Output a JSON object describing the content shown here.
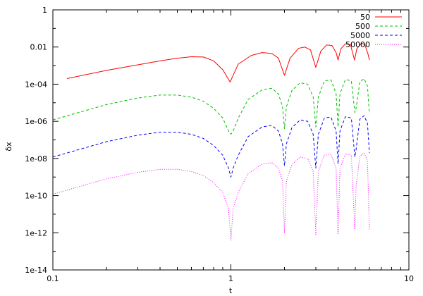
{
  "chart_data": {
    "type": "line",
    "title": "",
    "xlabel": "t",
    "ylabel": "δx",
    "xscale": "log",
    "yscale": "log",
    "xlim": [
      0.1,
      10
    ],
    "ylim": [
      1e-14,
      1
    ],
    "grid": false,
    "legend_position": "top-right",
    "x_ticks": [
      {
        "value": 0.1,
        "label": "0.1"
      },
      {
        "value": 1,
        "label": "1"
      },
      {
        "value": 10,
        "label": "10"
      }
    ],
    "y_ticks": [
      {
        "value": 1e-14,
        "label": "1e-14"
      },
      {
        "value": 1e-12,
        "label": "1e-12"
      },
      {
        "value": 1e-10,
        "label": "1e-10"
      },
      {
        "value": 1e-08,
        "label": "1e-08"
      },
      {
        "value": 1e-06,
        "label": "1e-06"
      },
      {
        "value": 0.0001,
        "label": "1e-04"
      },
      {
        "value": 0.01,
        "label": "0.01"
      },
      {
        "value": 1,
        "label": "1"
      }
    ],
    "series": [
      {
        "name": "50",
        "color": "#ff0000",
        "dash": "solid",
        "points": [
          [
            0.12,
            0.0002
          ],
          [
            0.2,
            0.00055
          ],
          [
            0.3,
            0.0011
          ],
          [
            0.4,
            0.0018
          ],
          [
            0.5,
            0.0025
          ],
          [
            0.6,
            0.003
          ],
          [
            0.7,
            0.0029
          ],
          [
            0.8,
            0.0018
          ],
          [
            0.9,
            0.0006
          ],
          [
            0.99,
            0.00013
          ],
          [
            1.1,
            0.0012
          ],
          [
            1.3,
            0.0035
          ],
          [
            1.5,
            0.005
          ],
          [
            1.7,
            0.0045
          ],
          [
            1.85,
            0.0025
          ],
          [
            2.0,
            0.0003
          ],
          [
            2.15,
            0.0025
          ],
          [
            2.4,
            0.0085
          ],
          [
            2.6,
            0.01
          ],
          [
            2.8,
            0.007
          ],
          [
            3.0,
            0.0008
          ],
          [
            3.2,
            0.006
          ],
          [
            3.45,
            0.013
          ],
          [
            3.7,
            0.012
          ],
          [
            3.9,
            0.005
          ],
          [
            4.0,
            0.002
          ],
          [
            4.15,
            0.008
          ],
          [
            4.4,
            0.015
          ],
          [
            4.7,
            0.013
          ],
          [
            4.95,
            0.002
          ],
          [
            5.1,
            0.008
          ],
          [
            5.4,
            0.016
          ],
          [
            5.65,
            0.014
          ],
          [
            5.9,
            0.004
          ],
          [
            6.0,
            0.002
          ]
        ]
      },
      {
        "name": "500",
        "color": "#00c000",
        "dash": "dashed",
        "points": [
          [
            0.1,
            1.2e-06
          ],
          [
            0.2,
            8e-06
          ],
          [
            0.3,
            1.8e-05
          ],
          [
            0.4,
            2.6e-05
          ],
          [
            0.5,
            2.6e-05
          ],
          [
            0.6,
            2e-05
          ],
          [
            0.7,
            1.2e-05
          ],
          [
            0.8,
            5e-06
          ],
          [
            0.9,
            1.5e-06
          ],
          [
            0.97,
            3e-07
          ],
          [
            1.0,
            2e-07
          ],
          [
            1.03,
            3e-07
          ],
          [
            1.1,
            1.5e-06
          ],
          [
            1.25,
            1.5e-05
          ],
          [
            1.5,
            5e-05
          ],
          [
            1.7,
            6e-05
          ],
          [
            1.85,
            3e-05
          ],
          [
            1.95,
            6e-06
          ],
          [
            2.0,
            4e-07
          ],
          [
            2.05,
            6e-06
          ],
          [
            2.2,
            4.5e-05
          ],
          [
            2.45,
            0.00012
          ],
          [
            2.7,
            0.0001
          ],
          [
            2.9,
            2e-05
          ],
          [
            3.0,
            5e-07
          ],
          [
            3.1,
            2e-05
          ],
          [
            3.35,
            0.00015
          ],
          [
            3.65,
            0.00017
          ],
          [
            3.9,
            3e-05
          ],
          [
            4.0,
            5e-07
          ],
          [
            4.1,
            3e-05
          ],
          [
            4.4,
            0.00018
          ],
          [
            4.75,
            0.00015
          ],
          [
            4.97,
            3e-06
          ],
          [
            5.05,
            5e-06
          ],
          [
            5.3,
            0.00013
          ],
          [
            5.6,
            0.0002
          ],
          [
            5.85,
            8e-05
          ],
          [
            6.0,
            2.5e-06
          ]
        ]
      },
      {
        "name": "5000",
        "color": "#0000ff",
        "dash": "dashed",
        "points": [
          [
            0.1,
            1.2e-08
          ],
          [
            0.2,
            8e-08
          ],
          [
            0.3,
            1.8e-07
          ],
          [
            0.4,
            2.6e-07
          ],
          [
            0.5,
            2.6e-07
          ],
          [
            0.6,
            2e-07
          ],
          [
            0.7,
            1.2e-07
          ],
          [
            0.8,
            5e-08
          ],
          [
            0.9,
            1.5e-08
          ],
          [
            0.97,
            3e-09
          ],
          [
            1.0,
            1e-09
          ],
          [
            1.03,
            3e-09
          ],
          [
            1.1,
            1.5e-08
          ],
          [
            1.25,
            1.5e-07
          ],
          [
            1.5,
            5e-07
          ],
          [
            1.7,
            6e-07
          ],
          [
            1.85,
            3e-07
          ],
          [
            1.95,
            6e-08
          ],
          [
            2.0,
            4e-09
          ],
          [
            2.05,
            6e-08
          ],
          [
            2.2,
            4.5e-07
          ],
          [
            2.45,
            1.2e-06
          ],
          [
            2.7,
            1e-06
          ],
          [
            2.9,
            2e-07
          ],
          [
            3.0,
            3e-09
          ],
          [
            3.1,
            2e-07
          ],
          [
            3.35,
            1.5e-06
          ],
          [
            3.65,
            1.7e-06
          ],
          [
            3.9,
            3e-07
          ],
          [
            4.0,
            5e-09
          ],
          [
            4.1,
            3e-07
          ],
          [
            4.4,
            1.8e-06
          ],
          [
            4.75,
            1.5e-06
          ],
          [
            4.97,
            1.2e-08
          ],
          [
            5.05,
            3e-08
          ],
          [
            5.3,
            1.3e-06
          ],
          [
            5.6,
            2e-06
          ],
          [
            5.85,
            8e-07
          ],
          [
            6.0,
            2e-08
          ]
        ]
      },
      {
        "name": "50000",
        "color": "#ff00ff",
        "dash": "dotted",
        "points": [
          [
            0.1,
            1.2e-10
          ],
          [
            0.2,
            8e-10
          ],
          [
            0.3,
            1.8e-09
          ],
          [
            0.4,
            2.6e-09
          ],
          [
            0.5,
            2.6e-09
          ],
          [
            0.6,
            2e-09
          ],
          [
            0.7,
            1.2e-09
          ],
          [
            0.8,
            5e-10
          ],
          [
            0.9,
            1.5e-10
          ],
          [
            0.97,
            2e-11
          ],
          [
            1.0,
            4e-13
          ],
          [
            1.03,
            2e-11
          ],
          [
            1.1,
            1.5e-10
          ],
          [
            1.25,
            1.5e-09
          ],
          [
            1.5,
            5e-09
          ],
          [
            1.7,
            6e-09
          ],
          [
            1.85,
            3e-09
          ],
          [
            1.95,
            6e-10
          ],
          [
            2.0,
            1e-12
          ],
          [
            2.05,
            6e-10
          ],
          [
            2.2,
            4.5e-09
          ],
          [
            2.45,
            1.2e-08
          ],
          [
            2.7,
            1e-08
          ],
          [
            2.9,
            2e-09
          ],
          [
            3.0,
            8e-13
          ],
          [
            3.1,
            2e-09
          ],
          [
            3.35,
            1.5e-08
          ],
          [
            3.65,
            1.7e-08
          ],
          [
            3.9,
            3e-09
          ],
          [
            4.0,
            8e-13
          ],
          [
            4.1,
            3e-09
          ],
          [
            4.4,
            1.8e-08
          ],
          [
            4.75,
            1.5e-08
          ],
          [
            4.97,
            1.5e-12
          ],
          [
            5.05,
            3e-10
          ],
          [
            5.3,
            1.3e-08
          ],
          [
            5.6,
            2e-08
          ],
          [
            5.85,
            8e-09
          ],
          [
            6.0,
            1.5e-12
          ]
        ]
      }
    ]
  }
}
